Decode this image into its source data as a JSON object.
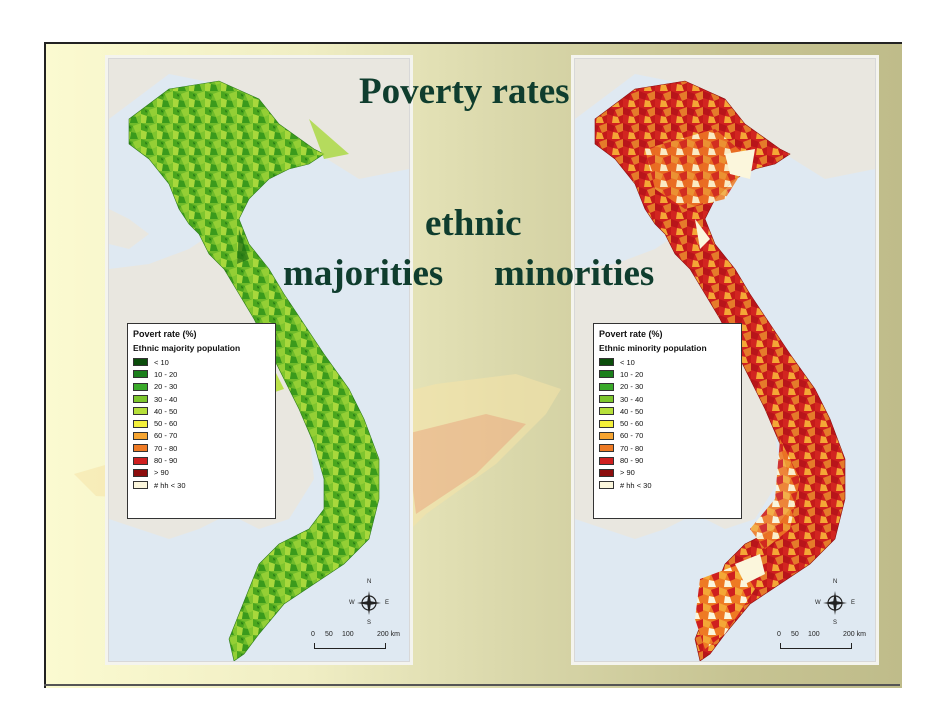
{
  "slide": {
    "title": "Poverty rates",
    "subtitle_line1": "ethnic",
    "subtitle_majorities": "majorities",
    "subtitle_minorities": "minorities"
  },
  "maps": [
    {
      "id": "left",
      "legend_title": "Povert rate (%)",
      "legend_subtitle": "Ethnic majority population",
      "dominant_colors": [
        "#4aa61e",
        "#7ec52e",
        "#a8d83c",
        "#1e6e12"
      ]
    },
    {
      "id": "right",
      "legend_title": "Povert rate (%)",
      "legend_subtitle": "Ethnic minority population",
      "dominant_colors": [
        "#c0161b",
        "#e57b2a",
        "#f4a736",
        "#fbf6dc"
      ]
    }
  ],
  "legend_items": [
    {
      "label": "< 10",
      "color": "#0b4d0b"
    },
    {
      "label": "10 - 20",
      "color": "#1b7f1b"
    },
    {
      "label": "20 - 30",
      "color": "#3aaa2a"
    },
    {
      "label": "30 - 40",
      "color": "#7dc72c"
    },
    {
      "label": "40 - 50",
      "color": "#b6e03a"
    },
    {
      "label": "50 - 60",
      "color": "#f4f03a"
    },
    {
      "label": "60 - 70",
      "color": "#f7a531"
    },
    {
      "label": "70 - 80",
      "color": "#ee7a24"
    },
    {
      "label": "80 - 90",
      "color": "#cf1f1f"
    },
    {
      "label": "> 90",
      "color": "#8c0d0d"
    },
    {
      "label": "# hh < 30",
      "color": "#fbf6dc"
    }
  ],
  "compass": {
    "n": "N",
    "s": "S",
    "e": "E",
    "w": "W"
  },
  "scale_bar": {
    "ticks": [
      "0",
      "50",
      "100",
      "200 km"
    ]
  },
  "colors": {
    "title": "#0f3d2e",
    "sea": "#dfe9f2",
    "neighbor_land": "#e9e7e0",
    "slide_bg_light": "#fbfad0",
    "slide_bg_dark": "#bfbc8a"
  }
}
